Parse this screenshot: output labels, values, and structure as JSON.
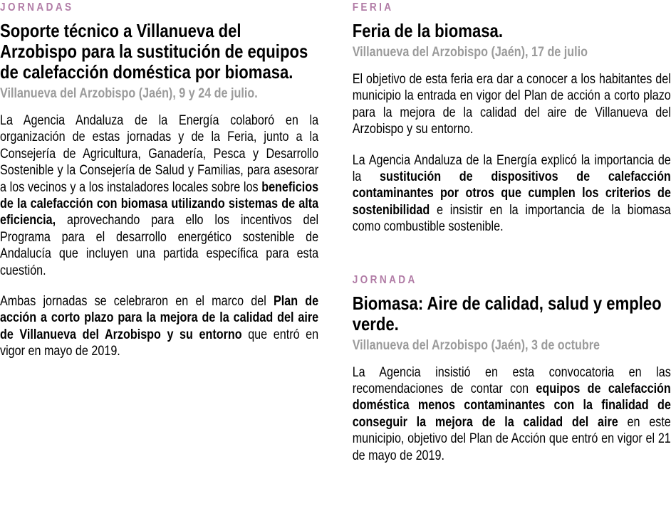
{
  "page": {
    "background": "#ffffff",
    "accent_color": "#b17ca6",
    "dateline_color": "#9b9b9b",
    "text_color": "#000000"
  },
  "columns": {
    "left": {
      "articles": [
        {
          "kicker": "JORNADAS",
          "title": "Soporte técnico a Villanueva del Arzobispo para la sustitución de equipos de calefacción doméstica por biomasa.",
          "dateline": "Villanueva del Arzobispo (Jaén), 9 y 24 de julio.",
          "paragraphs": [
            [
              {
                "t": "La Agencia Andaluza de la Energía colaboró en la organización de estas jornadas y de la Feria, junto a la Consejería de Agricultura, Ganadería, Pesca y Desarrollo Sostenible y la Consejería de Salud y Familias, para asesorar a los vecinos y a los instaladores locales sobre los "
              },
              {
                "t": "beneficios de la calefacción con biomasa utilizando sistemas de alta eficiencia,",
                "b": true
              },
              {
                "t": " aprovechando para ello los incentivos del Programa para el desarrollo energético sostenible de Andalucía que incluyen una partida específica para esta cuestión."
              }
            ],
            [
              {
                "t": "Ambas jornadas se celebraron en el marco del "
              },
              {
                "t": "Plan de acción a corto plazo para la mejora de la calidad del aire de Villanueva del Arzobispo y su entorno",
                "b": true
              },
              {
                "t": " que entró en vigor en mayo de 2019."
              }
            ]
          ]
        }
      ]
    },
    "right": {
      "articles": [
        {
          "kicker": "FERIA",
          "title": "Feria de la biomasa.",
          "dateline": "Villanueva del Arzobispo (Jaén), 17 de julio",
          "paragraphs": [
            [
              {
                "t": "El objetivo de esta feria era dar a conocer a los habitantes del municipio la entrada en vigor del Plan de acción a corto plazo para la mejora de la calidad del aire de Villanueva del Arzobispo y su entorno."
              }
            ],
            [
              {
                "t": "La Agencia Andaluza de la Energía explicó la importancia de la "
              },
              {
                "t": "sustitución de dispositivos de calefacción contaminantes por otros que cumplen los criterios de sostenibilidad",
                "b": true
              },
              {
                "t": " e insistir en la importancia de la biomasa como combustible sostenible."
              }
            ]
          ]
        },
        {
          "kicker": "JORNADA",
          "title": "Biomasa: Aire de calidad, salud y empleo verde.",
          "dateline": "Villanueva del Arzobispo (Jaén), 3 de octubre",
          "paragraphs": [
            [
              {
                "t": "La Agencia insistió en esta convocatoria en las recomendaciones de contar con "
              },
              {
                "t": "equipos de calefacción doméstica menos contaminantes con la finalidad de conseguir la mejora de la calidad del aire",
                "b": true
              },
              {
                "t": " en este municipio, objetivo del Plan de Acción que entró en vigor el 21 de mayo de 2019."
              }
            ]
          ]
        }
      ]
    }
  }
}
